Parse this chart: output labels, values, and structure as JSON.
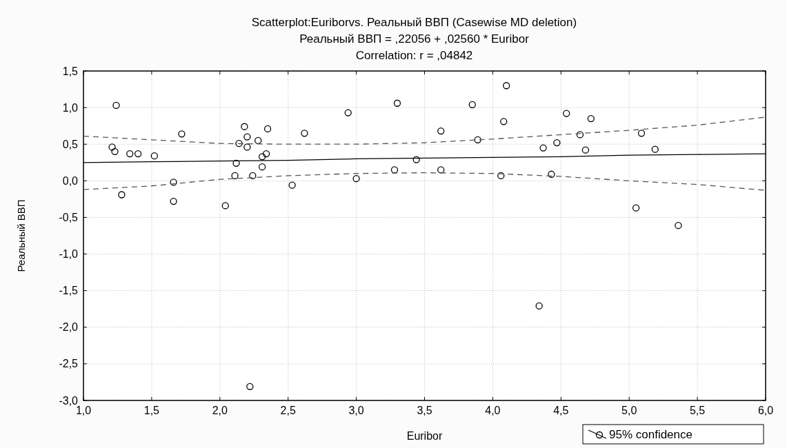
{
  "chart_data": {
    "type": "scatter",
    "title": "Scatterplot:Euriborvs. Реальный ВВП (Casewise MD deletion)",
    "subtitle": "Реальный ВВП = ,22056 + ,02560 * Euribor",
    "annotations": [
      "Correlation: r = ,04842"
    ],
    "xlabel": "Euribor",
    "ylabel": "Реальный ВВП",
    "xlim": [
      1,
      6
    ],
    "ylim": [
      -3,
      1.5
    ],
    "xticks": [
      {
        "value": 1,
        "label": "1,0"
      },
      {
        "value": 1.5,
        "label": "1,5"
      },
      {
        "value": 2,
        "label": "2,0"
      },
      {
        "value": 2.5,
        "label": "2,5"
      },
      {
        "value": 3,
        "label": "3,0"
      },
      {
        "value": 3.5,
        "label": "3,5"
      },
      {
        "value": 4,
        "label": "4,0"
      },
      {
        "value": 4.5,
        "label": "4,5"
      },
      {
        "value": 5,
        "label": "5,0"
      },
      {
        "value": 5.5,
        "label": "5,5"
      },
      {
        "value": 6,
        "label": "6,0"
      }
    ],
    "yticks": [
      {
        "value": -3,
        "label": "-3,0"
      },
      {
        "value": -2.5,
        "label": "-2,5"
      },
      {
        "value": -2,
        "label": "-2,0"
      },
      {
        "value": -1.5,
        "label": "-1,5"
      },
      {
        "value": -1,
        "label": "-1,0"
      },
      {
        "value": -0.5,
        "label": "-0,5"
      },
      {
        "value": 0,
        "label": "0,0"
      },
      {
        "value": 0.5,
        "label": "0,5"
      },
      {
        "value": 1,
        "label": "1,0"
      },
      {
        "value": 1.5,
        "label": "1,5"
      }
    ],
    "grid": true,
    "legend": "bottom right",
    "marker": "circle",
    "series": [
      {
        "color": "#000000",
        "x": [
          1.24,
          1.21,
          1.23,
          1.34,
          1.4,
          1.52,
          1.28,
          1.72,
          1.66,
          1.66,
          2.04,
          2.18,
          2.2,
          2.14,
          2.2,
          2.28,
          2.35,
          2.34,
          2.31,
          2.12,
          2.31,
          2.11,
          2.24,
          2.62,
          2.53,
          2.94,
          3.0,
          3.3,
          3.28,
          3.44,
          3.62,
          3.62,
          3.85,
          3.89,
          4.1,
          4.08,
          4.06,
          4.37,
          4.47,
          4.54,
          4.64,
          4.72,
          4.68,
          4.43,
          5.09,
          5.19,
          5.05,
          5.36,
          4.34,
          2.22
        ],
        "values": [
          1.03,
          0.46,
          0.4,
          0.37,
          0.37,
          0.34,
          -0.19,
          0.64,
          -0.02,
          -0.28,
          -0.34,
          0.74,
          0.6,
          0.51,
          0.46,
          0.55,
          0.71,
          0.37,
          0.33,
          0.24,
          0.19,
          0.07,
          0.07,
          0.65,
          -0.06,
          0.93,
          0.03,
          1.06,
          0.15,
          0.29,
          0.68,
          0.15,
          1.04,
          0.56,
          1.3,
          0.81,
          0.07,
          0.45,
          0.52,
          0.92,
          0.63,
          0.85,
          0.42,
          0.09,
          0.65,
          0.43,
          -0.37,
          -0.61,
          -1.71,
          -2.81
        ]
      },
      {
        "type": "line",
        "name": "95% confidence",
        "color": "#000000",
        "marker": "none",
        "line_style": "solid",
        "x": [
          1,
          1.5,
          2,
          2.5,
          3,
          3.5,
          4,
          4.5,
          5,
          5.5,
          6
        ],
        "values": [
          0.25,
          0.26,
          0.27,
          0.28,
          0.3,
          0.31,
          0.32,
          0.33,
          0.35,
          0.36,
          0.37
        ]
      },
      {
        "type": "line",
        "color": "#555555",
        "marker": "none",
        "line_style": "dashed",
        "x": [
          1,
          1.5,
          2,
          2.5,
          3,
          3.5,
          4,
          4.5,
          5,
          5.5,
          6
        ],
        "values": [
          -0.12,
          -0.07,
          0.02,
          0.07,
          0.1,
          0.11,
          0.1,
          0.06,
          0.0,
          -0.05,
          -0.13
        ]
      },
      {
        "type": "line",
        "color": "#555555",
        "marker": "none",
        "line_style": "dashed",
        "x": [
          1,
          1.5,
          2,
          2.5,
          3,
          3.5,
          4,
          4.5,
          5,
          5.5,
          6
        ],
        "values": [
          0.61,
          0.56,
          0.51,
          0.5,
          0.5,
          0.52,
          0.57,
          0.63,
          0.69,
          0.76,
          0.87
        ]
      }
    ]
  }
}
